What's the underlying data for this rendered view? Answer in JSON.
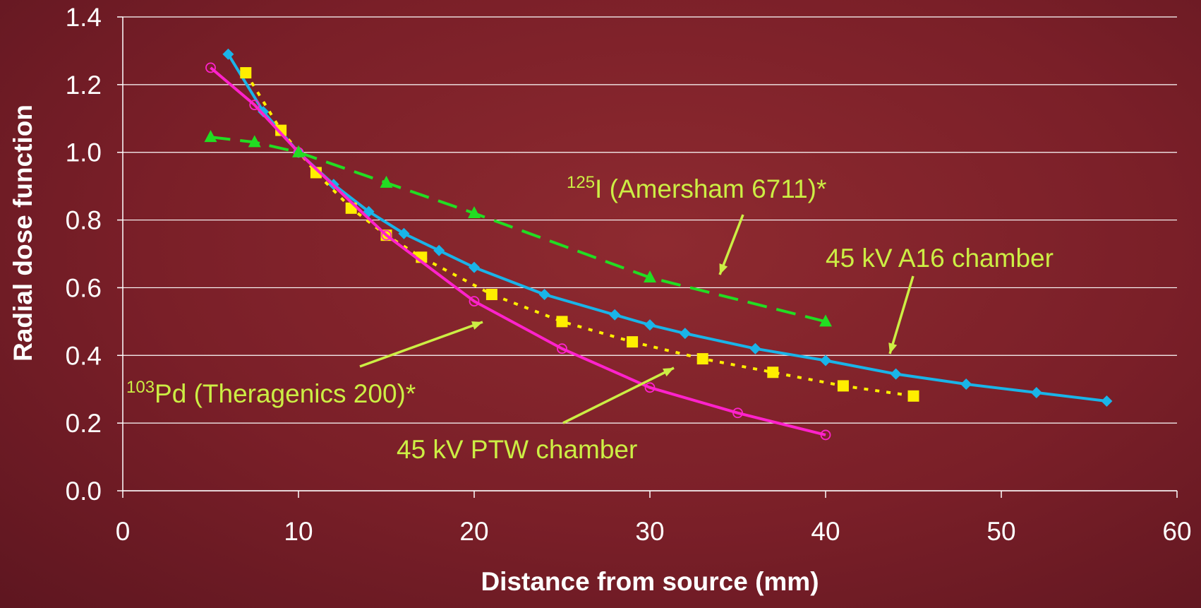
{
  "chart_data": {
    "type": "line",
    "xlabel": "Distance from source (mm)",
    "ylabel": "Radial dose function",
    "xlim": [
      0,
      60
    ],
    "xticks": [
      0,
      10,
      20,
      30,
      40,
      50,
      60
    ],
    "ylim": [
      0,
      1.4
    ],
    "yticks": [
      {
        "value": 0,
        "label": "0.0"
      },
      0.2,
      0.4,
      0.6,
      0.8,
      {
        "value": 1,
        "label": "1.0"
      },
      1.2,
      1.4
    ],
    "grid": true,
    "series": [
      {
        "color": "#1ab4e8",
        "marker": "diamond",
        "dash": "solid",
        "x": [
          6,
          8,
          10,
          12,
          14,
          16,
          18,
          20,
          24,
          28,
          30,
          32,
          36,
          40,
          44,
          48,
          52,
          56
        ],
        "values": [
          1.29,
          1.12,
          1.0,
          0.905,
          0.825,
          0.76,
          0.71,
          0.66,
          0.58,
          0.52,
          0.49,
          0.465,
          0.42,
          0.385,
          0.345,
          0.315,
          0.29,
          0.265
        ]
      },
      {
        "color": "#ffee00",
        "marker": "square",
        "dash": "dotted",
        "x": [
          7,
          9,
          11,
          13,
          15,
          17,
          21,
          25,
          29,
          33,
          37,
          41,
          45
        ],
        "values": [
          1.235,
          1.065,
          0.94,
          0.835,
          0.755,
          0.69,
          0.58,
          0.5,
          0.44,
          0.39,
          0.35,
          0.31,
          0.28
        ]
      },
      {
        "color": "#ff22cc",
        "marker": "circle",
        "dash": "solid",
        "x": [
          5,
          7.5,
          10,
          15,
          20,
          25,
          30,
          35,
          40
        ],
        "values": [
          1.25,
          1.14,
          1.0,
          0.755,
          0.56,
          0.42,
          0.305,
          0.23,
          0.165
        ]
      },
      {
        "color": "#22dd22",
        "marker": "triangle",
        "dash": "dashed",
        "x": [
          5,
          7.5,
          10,
          15,
          20,
          30,
          40
        ],
        "values": [
          1.045,
          1.03,
          1.0,
          0.91,
          0.82,
          0.63,
          0.5
        ]
      }
    ],
    "annotations": [
      {
        "sup": "125",
        "text": "I (Amersham 6711)*"
      },
      {
        "text": "45 kV A16 chamber"
      },
      {
        "sup": "103",
        "text": "Pd (Theragenics 200)*"
      },
      {
        "text": "45 kV PTW chamber"
      }
    ]
  }
}
